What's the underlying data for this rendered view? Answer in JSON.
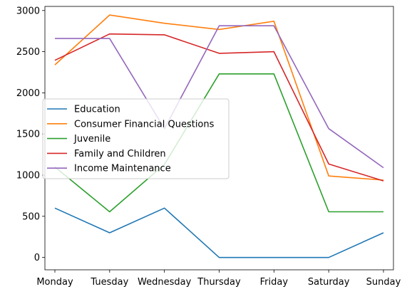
{
  "chart_data": {
    "type": "line",
    "title": "",
    "xlabel": "",
    "ylabel": "",
    "categories": [
      "Monday",
      "Tuesday",
      "Wednesday",
      "Thursday",
      "Friday",
      "Saturday",
      "Sunday"
    ],
    "ylim": [
      -150,
      3050
    ],
    "yticks": [
      0,
      500,
      1000,
      1500,
      2000,
      2500,
      3000
    ],
    "grid": false,
    "legend_position": "center-left",
    "series": [
      {
        "name": "Education",
        "color": "#1f77b4",
        "values": [
          600,
          300,
          600,
          0,
          0,
          0,
          300
        ]
      },
      {
        "name": "Consumer Financial Questions",
        "color": "#ff7f0e",
        "values": [
          2340,
          2945,
          2845,
          2770,
          2870,
          990,
          940
        ]
      },
      {
        "name": "Juvenile",
        "color": "#2ca02c",
        "values": [
          1100,
          555,
          1130,
          2230,
          2230,
          555,
          555
        ]
      },
      {
        "name": "Family and Children",
        "color": "#d62728",
        "values": [
          2395,
          2715,
          2705,
          2480,
          2500,
          1135,
          930
        ]
      },
      {
        "name": "Income Maintenance",
        "color": "#9467bd",
        "values": [
          2660,
          2660,
          1565,
          2815,
          2815,
          1565,
          1090
        ]
      }
    ]
  }
}
